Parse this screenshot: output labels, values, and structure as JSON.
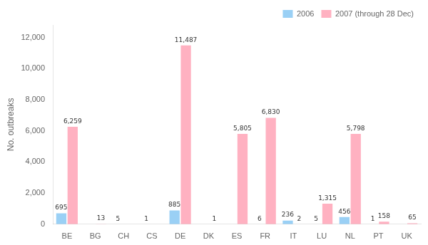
{
  "chart_data": {
    "type": "bar",
    "categories": [
      "BE",
      "BG",
      "CH",
      "CS",
      "DE",
      "DK",
      "ES",
      "FR",
      "IT",
      "LU",
      "NL",
      "PT",
      "UK"
    ],
    "series": [
      {
        "name": "2006",
        "values": [
          695,
          0,
          5,
          1,
          885,
          0,
          0,
          6,
          236,
          5,
          456,
          1,
          0
        ],
        "value_labels": [
          "695",
          null,
          "5",
          "1",
          "885",
          null,
          null,
          "6",
          "236",
          "5",
          "456",
          "1",
          null
        ]
      },
      {
        "name": "2007 (through 28 Dec)",
        "values": [
          6259,
          13,
          0,
          0,
          11487,
          1,
          5805,
          6830,
          2,
          1315,
          5798,
          158,
          65
        ],
        "value_labels": [
          "6,259",
          "13",
          null,
          null,
          "11,487",
          "1",
          "5,805",
          "6,830",
          "2",
          "1,315",
          "5,798",
          "158",
          "65"
        ]
      }
    ],
    "ylabel": "No. outbreaks",
    "ylim": [
      0,
      12800
    ],
    "yticks": [
      0,
      {
        "value": 2000,
        "label": "2,000"
      },
      {
        "value": 4000,
        "label": "4,000"
      },
      {
        "value": 6000,
        "label": "6,000"
      },
      {
        "value": 8000,
        "label": "8,000"
      },
      {
        "value": 10000,
        "label": "10,000"
      },
      {
        "value": 12000,
        "label": "12,000"
      }
    ],
    "grid": false,
    "legend": "upper right",
    "data_labels": true
  }
}
